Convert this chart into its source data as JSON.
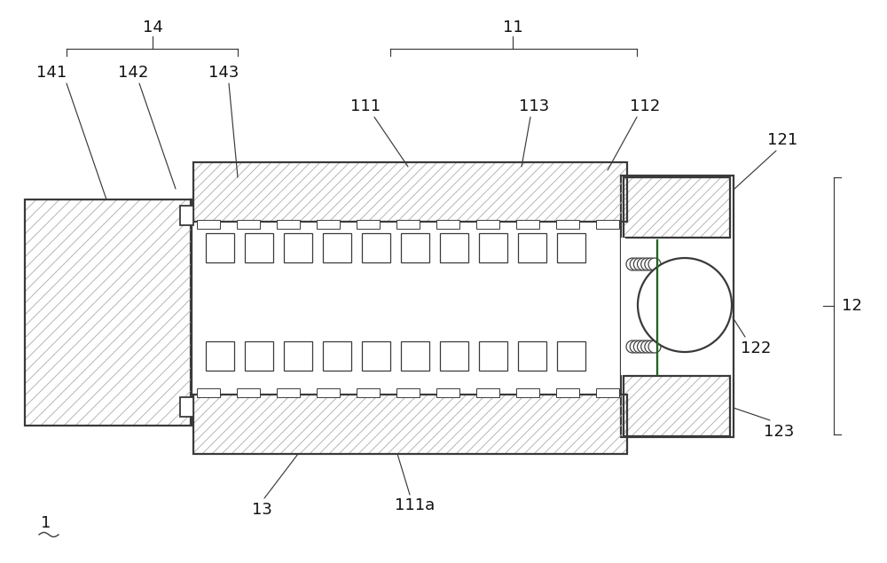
{
  "bg_color": "#ffffff",
  "line_color": "#3a3a3a",
  "fig_width": 10.0,
  "fig_height": 6.35,
  "dpi": 100
}
